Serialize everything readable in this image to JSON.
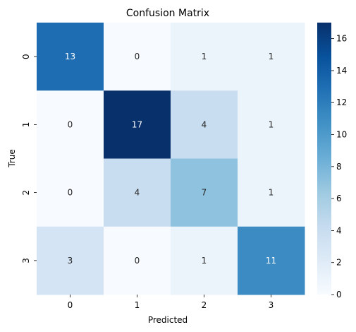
{
  "chart_data": {
    "type": "heatmap",
    "title": "Confusion Matrix",
    "xlabel": "Predicted",
    "ylabel": "True",
    "x_categories": [
      "0",
      "1",
      "2",
      "3"
    ],
    "y_categories": [
      "0",
      "1",
      "2",
      "3"
    ],
    "values": [
      [
        13,
        0,
        1,
        1
      ],
      [
        0,
        17,
        4,
        1
      ],
      [
        0,
        4,
        7,
        1
      ],
      [
        3,
        0,
        1,
        11
      ]
    ],
    "colormap": "Blues",
    "colorbar": {
      "range": [
        0,
        17
      ],
      "ticks": [
        "0",
        "2",
        "4",
        "6",
        "8",
        "10",
        "12",
        "14",
        "16"
      ]
    }
  }
}
